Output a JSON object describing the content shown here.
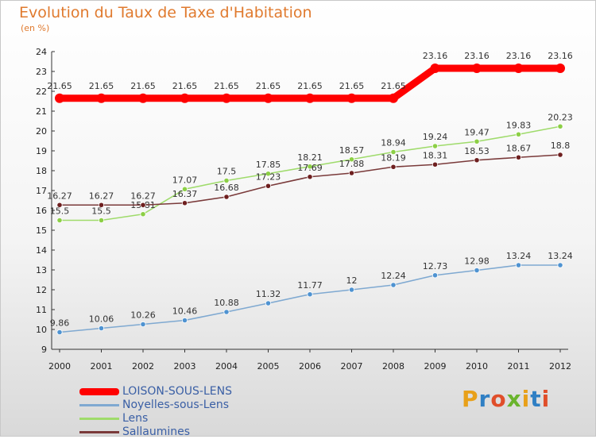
{
  "title": "Evolution du Taux de Taxe d'Habitation",
  "unit": "(en %)",
  "logo": {
    "text": "Proxiti",
    "letter_colors": [
      "#e8a019",
      "#2f7fc4",
      "#e04e2a",
      "#6ab42d",
      "#e8a019",
      "#2f7fc4",
      "#e04e2a"
    ]
  },
  "chart_data": {
    "type": "line",
    "title": "Evolution du Taux de Taxe d'Habitation",
    "ylabel": "(en %)",
    "xlabel": "",
    "x": [
      "2000",
      "2001",
      "2002",
      "2003",
      "2004",
      "2005",
      "2006",
      "2007",
      "2008",
      "2009",
      "2010",
      "2011",
      "2012"
    ],
    "ylim": [
      9,
      24
    ],
    "yticks": [
      "9",
      "10",
      "11",
      "12",
      "13",
      "14",
      "15",
      "16",
      "17",
      "18",
      "19",
      "20",
      "21",
      "22",
      "23",
      "24"
    ],
    "grid": false,
    "legend_position": "bottom-left",
    "series": [
      {
        "name": "LOISON-SOUS-LENS",
        "color": "#ff0000",
        "values": [
          21.65,
          21.65,
          21.65,
          21.65,
          21.65,
          21.65,
          21.65,
          21.65,
          21.65,
          23.16,
          23.16,
          23.16,
          23.16
        ],
        "labels": [
          "21.65",
          "21.65",
          "21.65",
          "21.65",
          "21.65",
          "21.65",
          "21.65",
          "21.65",
          "21.65",
          "23.16",
          "23.16",
          "23.16",
          "23.16"
        ]
      },
      {
        "name": "Noyelles-sous-Lens",
        "color": "#7fa9d1",
        "marker_color": "#4f93d1",
        "values": [
          9.86,
          10.06,
          10.26,
          10.46,
          10.88,
          11.32,
          11.77,
          12,
          12.24,
          12.73,
          12.98,
          13.24,
          13.24
        ],
        "labels": [
          "9.86",
          "10.06",
          "10.26",
          "10.46",
          "10.88",
          "11.32",
          "11.77",
          "12",
          "12.24",
          "12.73",
          "12.98",
          "13.24",
          "13.24"
        ]
      },
      {
        "name": "Lens",
        "color": "#9fdb6b",
        "marker_color": "#8ccf45",
        "values": [
          15.5,
          15.5,
          15.81,
          17.07,
          17.5,
          17.85,
          18.21,
          18.57,
          18.94,
          19.24,
          19.47,
          19.83,
          20.23
        ],
        "labels": [
          "15.5",
          "15.5",
          "15.81",
          "17.07",
          "17.5",
          "17.85",
          "18.21",
          "18.57",
          "18.94",
          "19.24",
          "19.47",
          "19.83",
          "20.23"
        ]
      },
      {
        "name": "Sallaumines",
        "color": "#7a3a3a",
        "marker_color": "#6e1f1f",
        "values": [
          16.27,
          16.27,
          16.27,
          16.37,
          16.68,
          17.23,
          17.69,
          17.88,
          18.19,
          18.31,
          18.53,
          18.67,
          18.8
        ],
        "labels": [
          "16.27",
          "16.27",
          "16.27",
          "16.37",
          "16.68",
          "17.23",
          "17.69",
          "17.88",
          "18.19",
          "18.31",
          "18.53",
          "18.67",
          "18.8"
        ]
      }
    ]
  }
}
